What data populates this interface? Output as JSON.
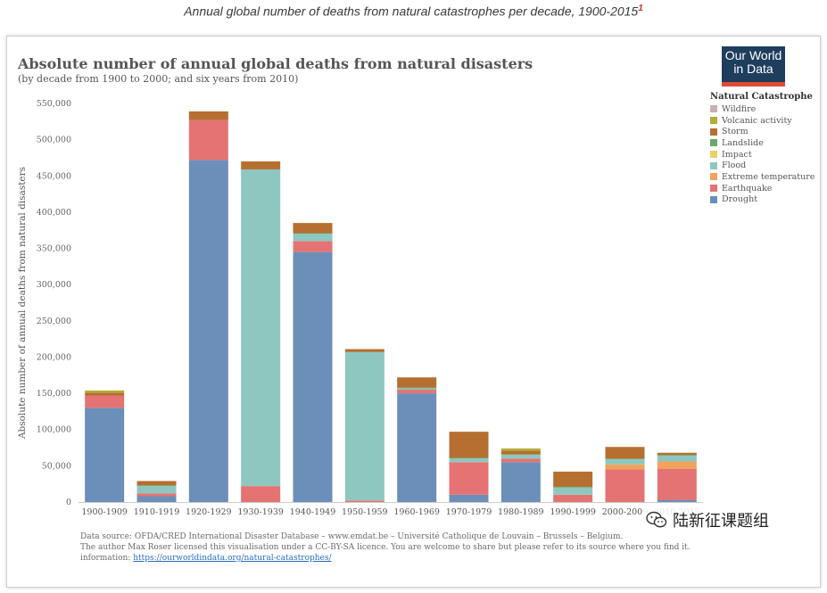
{
  "caption": {
    "text": "Annual global number of deaths from natural catastrophes per decade, 1900-2015",
    "footnote": "1"
  },
  "logo": {
    "line1": "Our World",
    "line2": "in Data"
  },
  "colors": {
    "Wildfire": "#c9b1b1",
    "Volcanic activity": "#b5ad35",
    "Storm": "#b56f30",
    "Landslide": "#6ba86b",
    "Impact": "#e8d266",
    "Flood": "#8ec7c0",
    "Extreme temperature": "#f0a35c",
    "Earthquake": "#e57373",
    "Drought": "#6b8fb8"
  },
  "chart_data": {
    "type": "bar",
    "stacked": true,
    "title": "Absolute number of annual global deaths from natural disasters",
    "subtitle": "(by decade from 1900 to 2000; and six years from 2010)",
    "xlabel": "",
    "ylabel": "Absolute number of annual deaths from natural disasters",
    "ylim": [
      0,
      550000
    ],
    "yticks": [
      0,
      50000,
      100000,
      150000,
      200000,
      250000,
      300000,
      350000,
      400000,
      450000,
      500000,
      550000
    ],
    "ytick_labels": [
      "0",
      "50,000",
      "100,000",
      "150,000",
      "200,000",
      "250,000",
      "300,000",
      "350,000",
      "400,000",
      "450,000",
      "500,000",
      "550,000"
    ],
    "legend_title": "Natural Catastrophe",
    "legend": [
      "Wildfire",
      "Volcanic activity",
      "Storm",
      "Landslide",
      "Impact",
      "Flood",
      "Extreme temperature",
      "Earthquake",
      "Drought"
    ],
    "categories": [
      "1900-1909",
      "1910-1919",
      "1920-1929",
      "1930-1939",
      "1940-1949",
      "1950-1959",
      "1960-1969",
      "1970-1979",
      "1980-1989",
      "1990-1999",
      "2000-2009",
      "2010-2015"
    ],
    "series": [
      {
        "name": "Drought",
        "values": [
          130000,
          8000,
          472000,
          0,
          345000,
          0,
          150000,
          10000,
          55000,
          0,
          0,
          3000
        ]
      },
      {
        "name": "Earthquake",
        "values": [
          17000,
          4000,
          55000,
          22000,
          15000,
          2000,
          5000,
          45000,
          5000,
          10000,
          45000,
          43000
        ]
      },
      {
        "name": "Extreme temperature",
        "values": [
          0,
          0,
          0,
          0,
          0,
          0,
          0,
          0,
          0,
          0,
          7000,
          10000
        ]
      },
      {
        "name": "Flood",
        "values": [
          0,
          10000,
          0,
          437000,
          10000,
          205000,
          2000,
          5000,
          5000,
          10000,
          7000,
          8000
        ]
      },
      {
        "name": "Impact",
        "values": [
          0,
          0,
          0,
          0,
          0,
          0,
          0,
          0,
          0,
          0,
          0,
          0
        ]
      },
      {
        "name": "Landslide",
        "values": [
          0,
          1000,
          0,
          0,
          1000,
          0,
          1000,
          1000,
          1000,
          1000,
          1000,
          1000
        ]
      },
      {
        "name": "Storm",
        "values": [
          4000,
          6000,
          12000,
          11000,
          14000,
          4000,
          14000,
          36000,
          5000,
          21000,
          16000,
          3000
        ]
      },
      {
        "name": "Volcanic activity",
        "values": [
          3000,
          0,
          0,
          0,
          0,
          0,
          0,
          0,
          3000,
          0,
          0,
          0
        ]
      },
      {
        "name": "Wildfire",
        "values": [
          0,
          0,
          0,
          0,
          0,
          0,
          0,
          0,
          0,
          0,
          0,
          0
        ]
      }
    ]
  },
  "footer": {
    "line1": "Data source: OFDA/CRED International Disaster Database – www.emdat.be – Université Catholique de Louvain – Brussels – Belgium.",
    "line2": "The author Max Roser licensed this visualisation under a CC-BY-SA licence. You are welcome to share but please refer to its source where you find it.",
    "line3_prefix": "information: ",
    "link": "https://ourworldindata.org/natural-catastrophes/"
  },
  "watermark": {
    "text": "陆新征课题组",
    "icon": "wechat-icon"
  }
}
